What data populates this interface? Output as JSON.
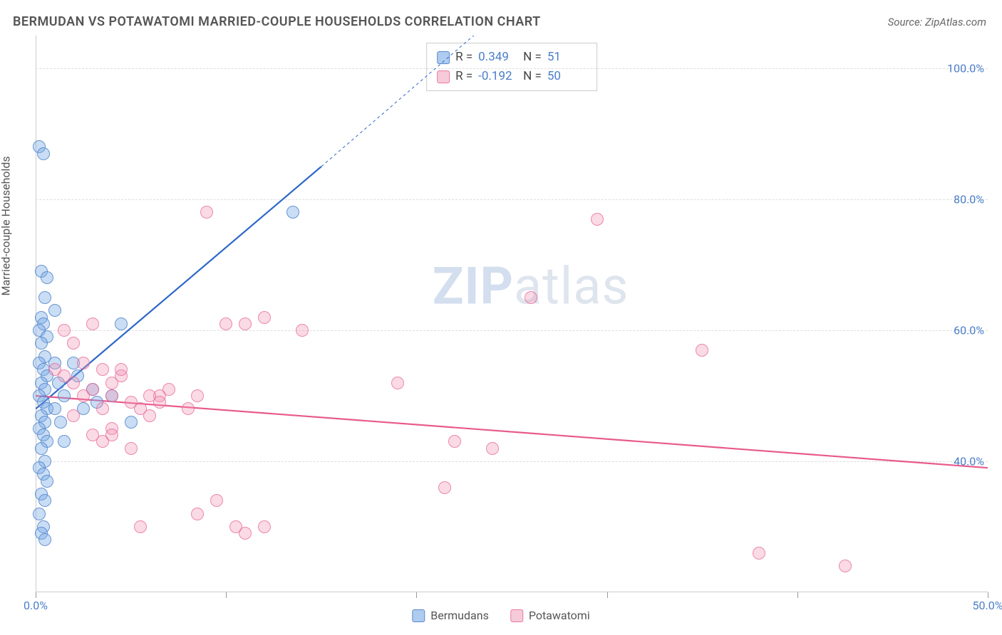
{
  "title": "BERMUDAN VS POTAWATOMI MARRIED-COUPLE HOUSEHOLDS CORRELATION CHART",
  "source": "Source: ZipAtlas.com",
  "y_axis_label": "Married-couple Households",
  "watermark_part1": "ZIP",
  "watermark_part2": "atlas",
  "chart": {
    "type": "scatter",
    "xlim": [
      0,
      50
    ],
    "ylim": [
      20,
      105
    ],
    "x_ticks": [
      0,
      10,
      20,
      30,
      40,
      50
    ],
    "x_tick_labels": [
      "0.0%",
      "",
      "",
      "",
      "",
      "50.0%"
    ],
    "y_gridlines": [
      40,
      60,
      80,
      100
    ],
    "y_tick_labels": [
      "40.0%",
      "60.0%",
      "80.0%",
      "100.0%"
    ],
    "background_color": "#ffffff",
    "grid_color": "#dddddd",
    "axis_color": "#cccccc",
    "tick_label_color": "#4a7ec9",
    "series": [
      {
        "name": "Bermudans",
        "color_fill": "rgba(120,170,230,0.4)",
        "color_stroke": "rgba(80,130,200,0.8)",
        "marker_size": 18,
        "stats": {
          "R": "0.349",
          "N": "51"
        },
        "trend": {
          "x1": 0,
          "y1": 48,
          "x2": 15,
          "y2": 85,
          "x2_dashed": 25,
          "y2_dashed": 110,
          "color": "#2e67c8",
          "width": 2.2
        },
        "points": [
          [
            0.2,
            88
          ],
          [
            0.4,
            87
          ],
          [
            0.3,
            69
          ],
          [
            0.6,
            68
          ],
          [
            0.5,
            65
          ],
          [
            0.3,
            62
          ],
          [
            0.4,
            61
          ],
          [
            0.2,
            60
          ],
          [
            0.6,
            59
          ],
          [
            0.3,
            58
          ],
          [
            0.5,
            56
          ],
          [
            0.2,
            55
          ],
          [
            0.4,
            54
          ],
          [
            0.6,
            53
          ],
          [
            0.3,
            52
          ],
          [
            0.5,
            51
          ],
          [
            0.2,
            50
          ],
          [
            0.4,
            49
          ],
          [
            0.6,
            48
          ],
          [
            0.3,
            47
          ],
          [
            0.5,
            46
          ],
          [
            0.2,
            45
          ],
          [
            0.4,
            44
          ],
          [
            0.6,
            43
          ],
          [
            0.3,
            42
          ],
          [
            0.5,
            40
          ],
          [
            0.2,
            39
          ],
          [
            0.4,
            38
          ],
          [
            0.6,
            37
          ],
          [
            0.3,
            35
          ],
          [
            0.5,
            34
          ],
          [
            0.2,
            32
          ],
          [
            0.4,
            30
          ],
          [
            0.3,
            29
          ],
          [
            0.5,
            28
          ],
          [
            1.0,
            55
          ],
          [
            1.2,
            52
          ],
          [
            1.5,
            50
          ],
          [
            1.0,
            48
          ],
          [
            1.3,
            46
          ],
          [
            1.5,
            43
          ],
          [
            1.0,
            63
          ],
          [
            2.0,
            55
          ],
          [
            2.2,
            53
          ],
          [
            2.5,
            48
          ],
          [
            3.0,
            51
          ],
          [
            3.2,
            49
          ],
          [
            4.0,
            50
          ],
          [
            4.5,
            61
          ],
          [
            13.5,
            78
          ],
          [
            5.0,
            46
          ]
        ]
      },
      {
        "name": "Potawatomi",
        "color_fill": "rgba(240,150,180,0.35)",
        "color_stroke": "rgba(230,100,150,0.7)",
        "marker_size": 18,
        "stats": {
          "R": "-0.192",
          "N": "50"
        },
        "trend": {
          "x1": 0,
          "y1": 50,
          "x2": 50,
          "y2": 39,
          "color": "#e85a8b",
          "width": 2.2
        },
        "points": [
          [
            1.0,
            54
          ],
          [
            1.5,
            53
          ],
          [
            2.0,
            52
          ],
          [
            2.5,
            55
          ],
          [
            3.0,
            51
          ],
          [
            3.5,
            54
          ],
          [
            4.0,
            50
          ],
          [
            4.5,
            53
          ],
          [
            5.0,
            49
          ],
          [
            5.5,
            48
          ],
          [
            6.0,
            47
          ],
          [
            6.5,
            50
          ],
          [
            1.5,
            60
          ],
          [
            2.0,
            58
          ],
          [
            3.0,
            44
          ],
          [
            3.5,
            43
          ],
          [
            4.0,
            45
          ],
          [
            5.0,
            42
          ],
          [
            2.5,
            50
          ],
          [
            3.0,
            61
          ],
          [
            4.0,
            52
          ],
          [
            7.0,
            51
          ],
          [
            8.0,
            48
          ],
          [
            8.5,
            50
          ],
          [
            9.0,
            78
          ],
          [
            10.0,
            61
          ],
          [
            11.0,
            61
          ],
          [
            12.0,
            62
          ],
          [
            14.0,
            60
          ],
          [
            10.5,
            30
          ],
          [
            11.0,
            29
          ],
          [
            12.0,
            30
          ],
          [
            9.5,
            34
          ],
          [
            8.5,
            32
          ],
          [
            19.0,
            52
          ],
          [
            22.0,
            43
          ],
          [
            24.0,
            42
          ],
          [
            21.5,
            36
          ],
          [
            26.0,
            65
          ],
          [
            29.5,
            77
          ],
          [
            35.0,
            57
          ],
          [
            38.0,
            26
          ],
          [
            42.5,
            24
          ],
          [
            4.0,
            44
          ],
          [
            5.5,
            30
          ],
          [
            6.0,
            50
          ],
          [
            2.0,
            47
          ],
          [
            3.5,
            48
          ],
          [
            4.5,
            54
          ],
          [
            6.5,
            49
          ]
        ]
      }
    ]
  },
  "legend": {
    "items": [
      {
        "label": "Bermudans",
        "swatch": "blue"
      },
      {
        "label": "Potawatomi",
        "swatch": "pink"
      }
    ]
  }
}
